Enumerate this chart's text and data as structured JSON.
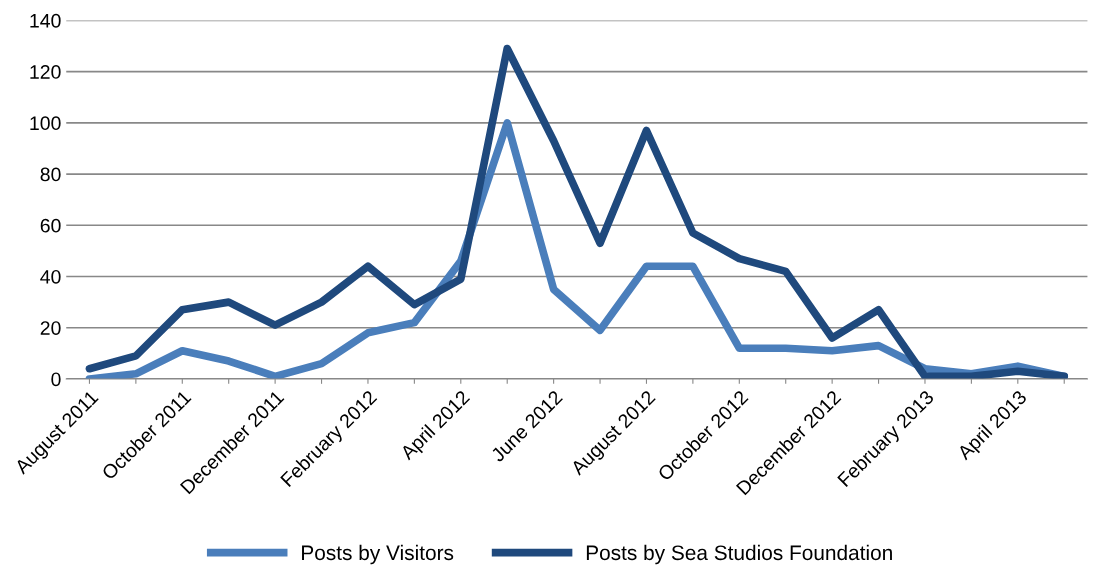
{
  "chart_data": {
    "type": "line",
    "categories": [
      "August 2011",
      null,
      "October 2011",
      null,
      "December 2011",
      null,
      "February 2012",
      null,
      "April 2012",
      null,
      "June 2012",
      null,
      "August 2012",
      null,
      "October 2012",
      null,
      "December 2012",
      null,
      "February 2013",
      null,
      "April 2013",
      null
    ],
    "series": [
      {
        "name": "Posts by Visitors",
        "color": "#4a7ebb",
        "values": [
          0,
          2,
          11,
          7,
          1,
          6,
          18,
          22,
          46,
          100,
          35,
          19,
          44,
          44,
          12,
          12,
          11,
          13,
          4,
          2,
          5,
          1
        ]
      },
      {
        "name": "Posts by Sea Studios Foundation",
        "color": "#1f497d",
        "values": [
          4,
          9,
          27,
          30,
          21,
          30,
          44,
          29,
          39,
          129,
          93,
          53,
          97,
          57,
          47,
          42,
          16,
          27,
          1,
          1,
          3,
          1
        ]
      }
    ],
    "ylim": [
      0,
      140
    ],
    "yticks": [
      0,
      20,
      40,
      60,
      80,
      100,
      120,
      140
    ],
    "grid": "y",
    "legend": "bottom",
    "marker": "none",
    "line_style": "solid"
  }
}
